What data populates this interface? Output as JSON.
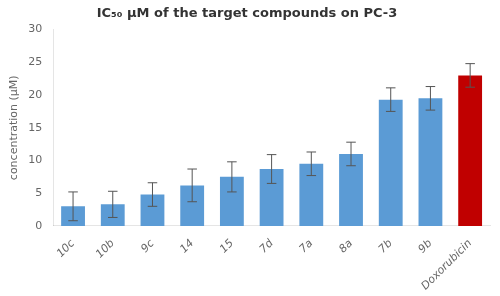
{
  "chart_data": {
    "type": "bar",
    "title": "IC₅₀ μM of the target compounds on PC-3",
    "ylabel": "concentration (μM)",
    "categories": [
      "10c",
      "10b",
      "9c",
      "14",
      "15",
      "7d",
      "7a",
      "8a",
      "7b",
      "9b",
      "Doxorubicin"
    ],
    "values": [
      3.0,
      3.3,
      4.8,
      6.2,
      7.5,
      8.7,
      9.5,
      11.0,
      19.3,
      19.5,
      23.0
    ],
    "errors": [
      2.2,
      2.0,
      1.8,
      2.5,
      2.3,
      2.2,
      1.8,
      1.8,
      1.8,
      1.8,
      1.8
    ],
    "colors": [
      "#5B9BD5",
      "#5B9BD5",
      "#5B9BD5",
      "#5B9BD5",
      "#5B9BD5",
      "#5B9BD5",
      "#5B9BD5",
      "#5B9BD5",
      "#5B9BD5",
      "#5B9BD5",
      "#C00000"
    ],
    "ylim": [
      0,
      30
    ],
    "yticks": [
      0,
      5,
      10,
      15,
      20,
      25,
      30
    ],
    "grid": false
  }
}
